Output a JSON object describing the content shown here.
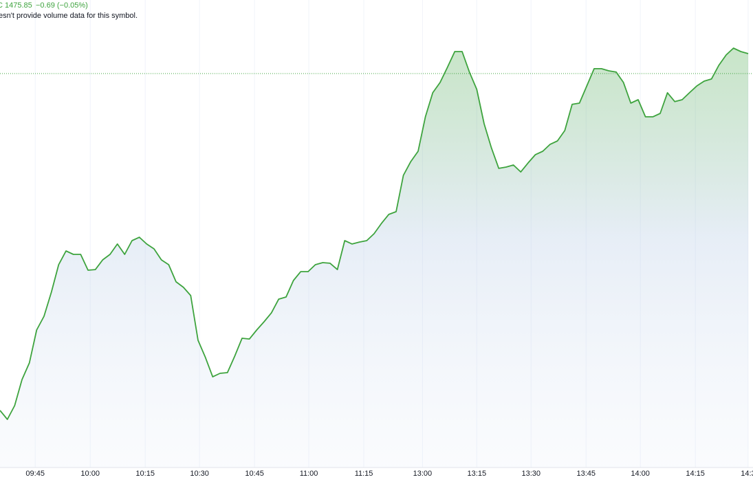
{
  "chart_data": {
    "type": "area",
    "header": {
      "close": "C 1475.85",
      "change": "−0.69 (−0.05%)",
      "notice": "esn't provide volume data for this symbol."
    },
    "series": [
      {
        "color": "#3da33d",
        "values": [
          1455.0,
          1454.45,
          1455.3,
          1456.91,
          1457.94,
          1459.98,
          1460.83,
          1462.32,
          1464.02,
          1464.87,
          1464.66,
          1464.66,
          1463.68,
          1463.72,
          1464.32,
          1464.66,
          1465.3,
          1464.66,
          1465.51,
          1465.72,
          1465.3,
          1465.0,
          1464.32,
          1464.02,
          1462.96,
          1462.62,
          1462.11,
          1459.34,
          1458.28,
          1457.08,
          1457.3,
          1457.34,
          1458.36,
          1459.47,
          1459.42,
          1459.98,
          1460.49,
          1461.04,
          1461.89,
          1462.02,
          1463.04,
          1463.59,
          1463.59,
          1464.02,
          1464.15,
          1464.11,
          1463.72,
          1465.51,
          1465.3,
          1465.42,
          1465.51,
          1465.94,
          1466.57,
          1467.13,
          1467.3,
          1469.55,
          1470.4,
          1471.04,
          1473.17,
          1474.66,
          1475.3,
          1476.23,
          1477.21,
          1477.21,
          1475.94,
          1474.87,
          1472.74,
          1471.25,
          1469.98,
          1470.06,
          1470.19,
          1469.76,
          1470.32,
          1470.83,
          1471.04,
          1471.47,
          1471.68,
          1472.32,
          1473.94,
          1474.02,
          1475.08,
          1476.15,
          1476.15,
          1476.02,
          1475.94,
          1475.3,
          1474.02,
          1474.23,
          1473.17,
          1473.17,
          1473.38,
          1474.66,
          1474.11,
          1474.23,
          1474.66,
          1475.08,
          1475.38,
          1475.51,
          1476.36,
          1477.0,
          1477.42,
          1477.21,
          1477.08
        ]
      }
    ],
    "price_line": 1475.85,
    "ylim": [
      1451.47,
      1480.4
    ],
    "xlim": [
      0,
      102.66
    ],
    "xticks": [
      {
        "value": 4.8,
        "label": "09:45"
      },
      {
        "value": 12.3,
        "label": "10:00"
      },
      {
        "value": 19.8,
        "label": "10:15"
      },
      {
        "value": 27.2,
        "label": "10:30"
      },
      {
        "value": 34.7,
        "label": "10:45"
      },
      {
        "value": 42.1,
        "label": "11:00"
      },
      {
        "value": 49.6,
        "label": "11:15"
      },
      {
        "value": 57.6,
        "label": "13:00"
      },
      {
        "value": 65.0,
        "label": "13:15"
      },
      {
        "value": 72.4,
        "label": "13:30"
      },
      {
        "value": 79.9,
        "label": "13:45"
      },
      {
        "value": 87.3,
        "label": "14:00"
      },
      {
        "value": 94.8,
        "label": "14:15"
      },
      {
        "value": 102.0,
        "label": "14:3"
      }
    ],
    "grid": true
  }
}
